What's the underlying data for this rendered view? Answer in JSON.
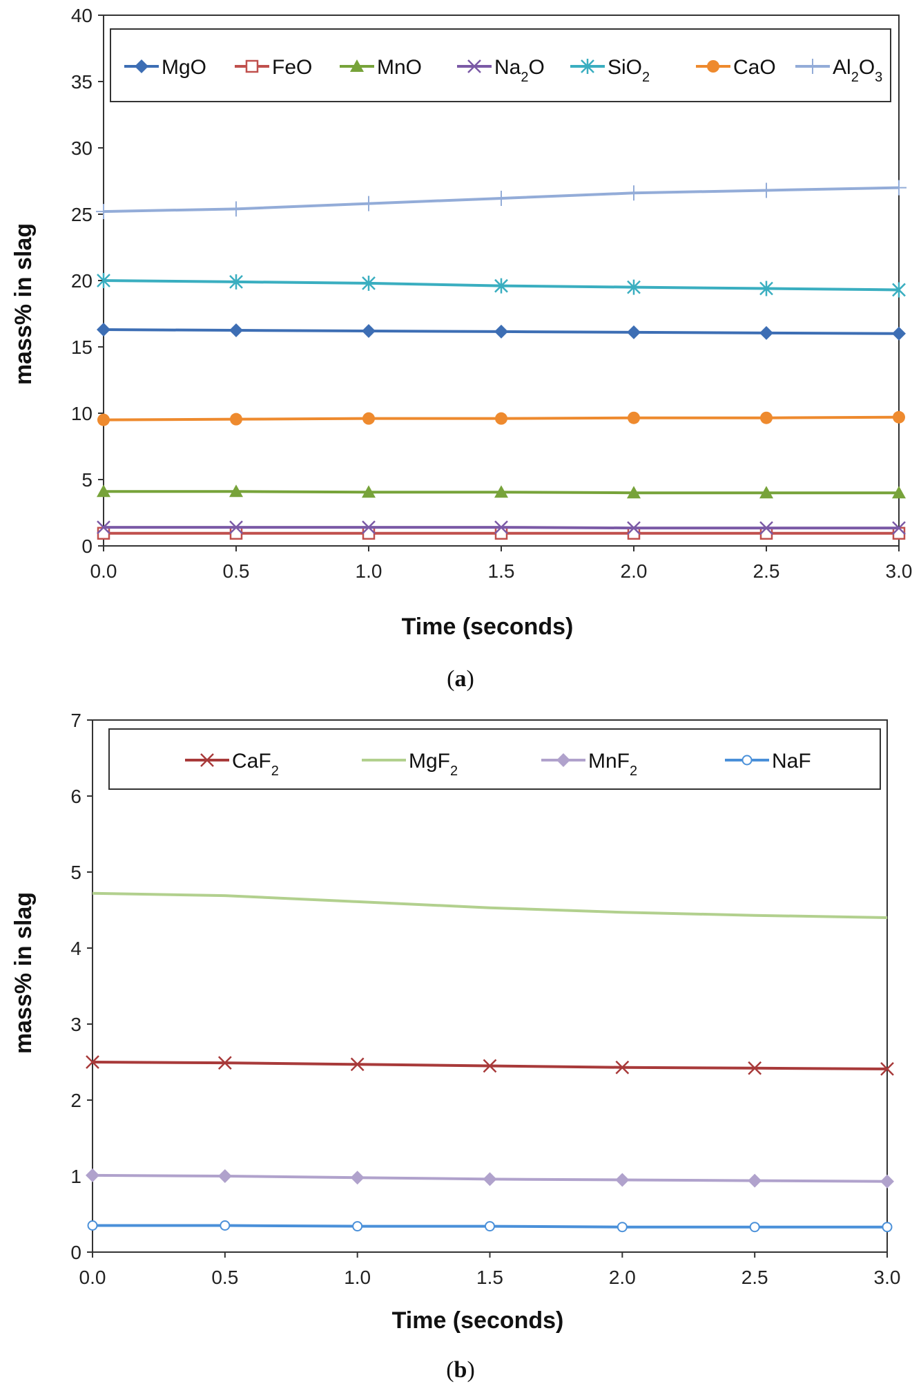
{
  "chart_data": [
    {
      "type": "line",
      "caption": "(a)",
      "caption_letter": "a",
      "xlabel": "Time (seconds)",
      "ylabel": "mass% in slag",
      "x": [
        0.0,
        0.5,
        1.0,
        1.5,
        2.0,
        2.5,
        3.0
      ],
      "x_tick_labels": [
        "0.0",
        "0.5",
        "1.0",
        "1.5",
        "2.0",
        "2.5",
        "3.0"
      ],
      "ylim": [
        0,
        40
      ],
      "y_ticks": [
        0,
        5,
        10,
        15,
        20,
        25,
        30,
        35,
        40
      ],
      "legend_position": "top",
      "series": [
        {
          "name": "MgO",
          "base": "MgO",
          "sub": "",
          "tail": "",
          "color": "#3d6eb4",
          "marker": "diamond",
          "values": [
            16.3,
            16.25,
            16.2,
            16.15,
            16.1,
            16.05,
            16.0
          ]
        },
        {
          "name": "FeO",
          "base": "FeO",
          "sub": "",
          "tail": "",
          "color": "#c0504d",
          "marker": "square-open",
          "values": [
            0.95,
            0.95,
            0.95,
            0.95,
            0.95,
            0.95,
            0.95
          ]
        },
        {
          "name": "MnO",
          "base": "MnO",
          "sub": "",
          "tail": "",
          "color": "#77a33a",
          "marker": "triangle",
          "values": [
            4.1,
            4.1,
            4.05,
            4.05,
            4.0,
            4.0,
            4.0
          ]
        },
        {
          "name": "Na2O",
          "base": "Na",
          "sub": "2",
          "tail": "O",
          "color": "#7b5aa6",
          "marker": "x",
          "values": [
            1.4,
            1.4,
            1.4,
            1.4,
            1.35,
            1.35,
            1.35
          ]
        },
        {
          "name": "SiO2",
          "base": "SiO",
          "sub": "2",
          "tail": "",
          "color": "#3aaec0",
          "marker": "star",
          "values": [
            20.0,
            19.9,
            19.8,
            19.6,
            19.5,
            19.4,
            19.3
          ]
        },
        {
          "name": "CaO",
          "base": "CaO",
          "sub": "",
          "tail": "",
          "color": "#ee8a2e",
          "marker": "circle",
          "values": [
            9.5,
            9.55,
            9.6,
            9.6,
            9.65,
            9.65,
            9.7
          ]
        },
        {
          "name": "Al2O3",
          "base": "Al",
          "sub": "2",
          "tail": "O",
          "sub2": "3",
          "color": "#93acd8",
          "marker": "plus",
          "values": [
            25.2,
            25.4,
            25.8,
            26.2,
            26.6,
            26.8,
            27.0
          ]
        }
      ]
    },
    {
      "type": "line",
      "caption": "(b)",
      "caption_letter": "b",
      "xlabel": "Time (seconds)",
      "ylabel": "mass% in slag",
      "x": [
        0.0,
        0.5,
        1.0,
        1.5,
        2.0,
        2.5,
        3.0
      ],
      "x_tick_labels": [
        "0.0",
        "0.5",
        "1.0",
        "1.5",
        "2.0",
        "2.5",
        "3.0"
      ],
      "ylim": [
        0,
        7
      ],
      "y_ticks": [
        0,
        1,
        2,
        3,
        4,
        5,
        6,
        7
      ],
      "legend_position": "top",
      "series": [
        {
          "name": "CaF2",
          "base": "CaF",
          "sub": "2",
          "tail": "",
          "color": "#a83a3a",
          "marker": "x",
          "values": [
            2.5,
            2.49,
            2.47,
            2.45,
            2.43,
            2.42,
            2.41
          ]
        },
        {
          "name": "MgF2",
          "base": "MgF",
          "sub": "2",
          "tail": "",
          "color": "#b2d08e",
          "marker": "none",
          "values": [
            4.72,
            4.69,
            4.61,
            4.53,
            4.47,
            4.43,
            4.4
          ]
        },
        {
          "name": "MnF2",
          "base": "MnF",
          "sub": "2",
          "tail": "",
          "color": "#b0a2cc",
          "marker": "diamond",
          "values": [
            1.01,
            1.0,
            0.98,
            0.96,
            0.95,
            0.94,
            0.93
          ]
        },
        {
          "name": "NaF",
          "base": "NaF",
          "sub": "",
          "tail": "",
          "color": "#4a90d9",
          "marker": "circle-open",
          "values": [
            0.35,
            0.35,
            0.34,
            0.34,
            0.33,
            0.33,
            0.33
          ]
        }
      ]
    }
  ]
}
